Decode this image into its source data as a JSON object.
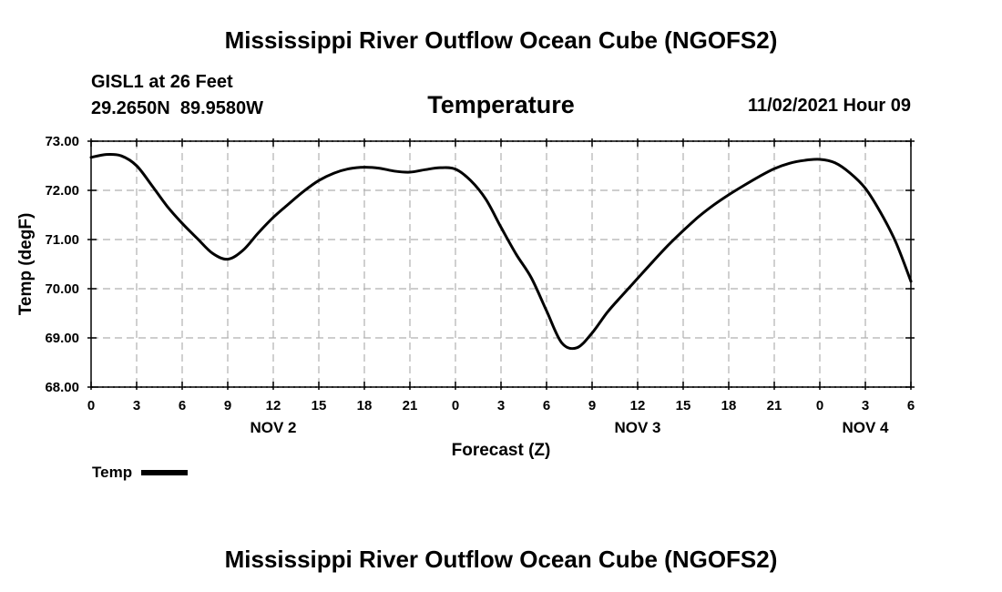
{
  "header": {
    "title": "Mississippi River Outflow Ocean Cube (NGOFS2)",
    "station_name": "GISL1 at 26 Feet",
    "coordinates": "29.2650N  89.9580W",
    "chart_title": "Temperature",
    "timestamp": "11/02/2021 Hour 09"
  },
  "footer": {
    "title": "Mississippi River Outflow Ocean Cube (NGOFS2)"
  },
  "legend": {
    "label": "Temp",
    "color": "#000000"
  },
  "chart_data": {
    "type": "line",
    "title": "Temperature",
    "xlabel": "Forecast (Z)",
    "ylabel": "Temp (degF)",
    "xlim": [
      0,
      54
    ],
    "ylim": [
      68,
      73
    ],
    "grid": true,
    "x_ticks": [
      0,
      3,
      6,
      9,
      12,
      15,
      18,
      21,
      24,
      27,
      30,
      33,
      36,
      39,
      42,
      45,
      48,
      51,
      54
    ],
    "x_tick_labels": [
      "0",
      "3",
      "6",
      "9",
      "12",
      "15",
      "18",
      "21",
      "0",
      "3",
      "6",
      "9",
      "12",
      "15",
      "18",
      "21",
      "0",
      "3",
      "6"
    ],
    "y_ticks": [
      68,
      69,
      70,
      71,
      72,
      73
    ],
    "y_tick_labels": [
      "68.00",
      "69.00",
      "70.00",
      "71.00",
      "72.00",
      "73.00"
    ],
    "date_labels": [
      {
        "x": 12,
        "label": "NOV 2"
      },
      {
        "x": 36,
        "label": "NOV 3"
      },
      {
        "x": 51,
        "label": "NOV 4"
      }
    ],
    "series": [
      {
        "name": "Temp",
        "x": [
          0,
          1,
          2,
          3,
          4,
          5,
          6,
          7,
          8,
          9,
          10,
          11,
          12,
          13,
          14,
          15,
          16,
          17,
          18,
          19,
          20,
          21,
          22,
          23,
          24,
          25,
          26,
          27,
          28,
          29,
          30,
          31,
          32,
          33,
          34,
          35,
          36,
          37,
          38,
          39,
          40,
          41,
          42,
          43,
          44,
          45,
          46,
          47,
          48,
          49,
          50,
          51,
          52,
          53,
          54
        ],
        "values": [
          72.67,
          72.73,
          72.7,
          72.5,
          72.1,
          71.68,
          71.33,
          71.02,
          70.72,
          70.6,
          70.78,
          71.13,
          71.45,
          71.72,
          71.98,
          72.2,
          72.35,
          72.44,
          72.47,
          72.45,
          72.39,
          72.37,
          72.42,
          72.46,
          72.43,
          72.2,
          71.82,
          71.25,
          70.7,
          70.22,
          69.55,
          68.9,
          68.8,
          69.1,
          69.52,
          69.87,
          70.21,
          70.55,
          70.88,
          71.18,
          71.46,
          71.7,
          71.91,
          72.1,
          72.28,
          72.44,
          72.55,
          72.61,
          72.63,
          72.56,
          72.35,
          72.04,
          71.55,
          70.95,
          70.15
        ]
      }
    ]
  }
}
